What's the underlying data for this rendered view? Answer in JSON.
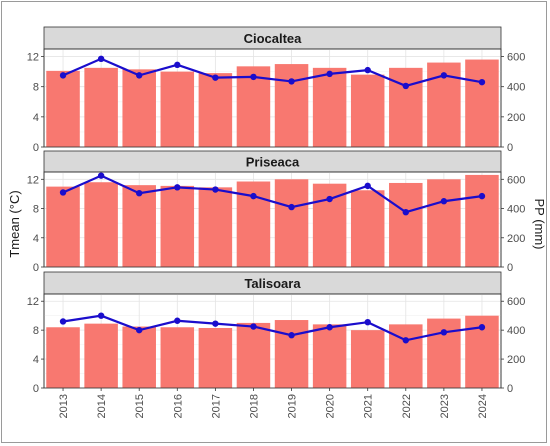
{
  "chart_data": {
    "type": "bar+line",
    "categories": [
      "2013",
      "2014",
      "2015",
      "2016",
      "2017",
      "2018",
      "2019",
      "2020",
      "2021",
      "2022",
      "2023",
      "2024"
    ],
    "y_left_label": "Tmean (°C)",
    "y_right_label": "PP (mm)",
    "y_left_ticks": [
      "0",
      "4",
      "8",
      "12"
    ],
    "y_right_ticks": [
      "0",
      "200",
      "400",
      "600"
    ],
    "y_left_lim": [
      0,
      13
    ],
    "y_right_lim": [
      0,
      650
    ],
    "grid": true,
    "colors": {
      "bar": "#f87870",
      "line": "#1a0dcc",
      "strip": "#d9d9d9"
    },
    "panels": [
      {
        "name": "Ciocaltea",
        "tmean": [
          10.1,
          10.5,
          10.3,
          10.0,
          9.8,
          10.7,
          11.0,
          10.5,
          9.6,
          10.5,
          11.2,
          11.6
        ],
        "pp": [
          475,
          585,
          475,
          545,
          460,
          465,
          435,
          485,
          510,
          405,
          475,
          430
        ]
      },
      {
        "name": "Priseaca",
        "tmean": [
          11.0,
          11.6,
          11.2,
          11.1,
          10.9,
          11.7,
          12.0,
          11.4,
          10.5,
          11.5,
          12.0,
          12.6
        ],
        "pp": [
          510,
          625,
          505,
          545,
          530,
          485,
          410,
          465,
          555,
          375,
          450,
          485
        ]
      },
      {
        "name": "Talisoara",
        "tmean": [
          8.4,
          8.9,
          8.5,
          8.4,
          8.3,
          9.0,
          9.4,
          8.8,
          8.0,
          8.8,
          9.6,
          10.0
        ],
        "pp": [
          460,
          500,
          400,
          465,
          445,
          425,
          365,
          420,
          455,
          330,
          385,
          420
        ]
      }
    ]
  }
}
